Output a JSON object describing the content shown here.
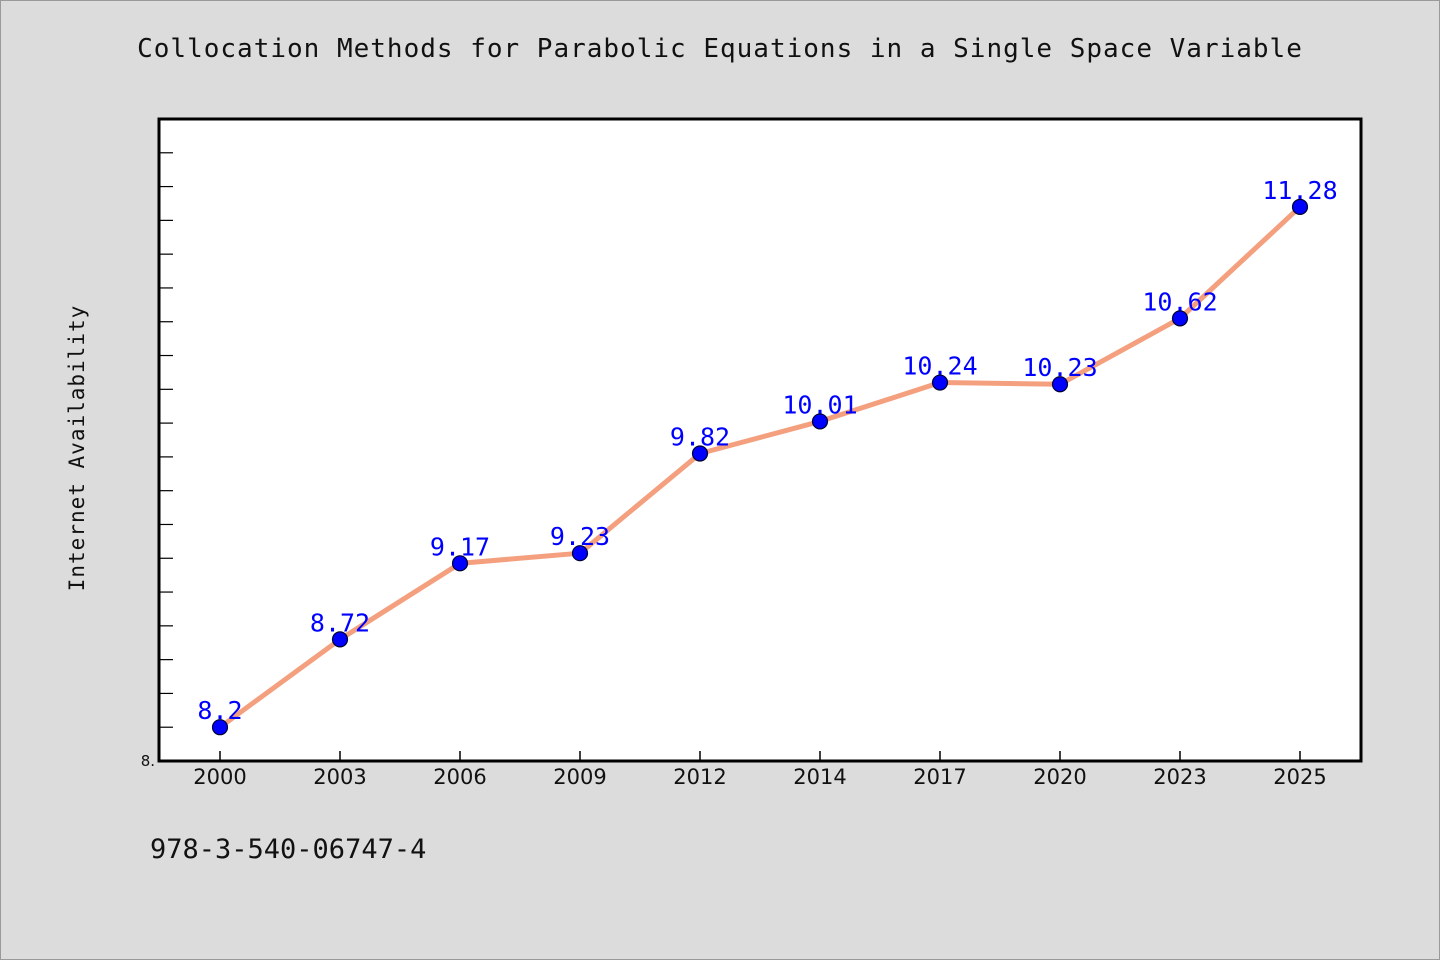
{
  "page": {
    "footer_text": "978-3-540-06747-4"
  },
  "chart_data": {
    "type": "line",
    "title": "Collocation Methods for Parabolic Equations in a Single Space Variable",
    "xlabel": "",
    "ylabel": "Internet Availability",
    "categories": [
      "2000",
      "2003",
      "2006",
      "2009",
      "2012",
      "2014",
      "2017",
      "2020",
      "2023",
      "2025"
    ],
    "series": [
      {
        "values": [
          8.2,
          8.72,
          9.17,
          9.23,
          9.82,
          10.01,
          10.24,
          10.23,
          10.62,
          11.28
        ],
        "data_labels": [
          "8.2",
          "8.72",
          "9.17",
          "9.23",
          "9.82",
          "10.01",
          "10.24",
          "10.23",
          "10.62",
          "11.28"
        ]
      }
    ],
    "ylim": [
      8.0,
      11.8
    ],
    "y_tick_label_visible": "8.",
    "grid": false,
    "legend": "none",
    "colors": {
      "line": "#f4a07f",
      "marker": "#0000ff",
      "label": "#0000ff",
      "background": "#dcdcdc",
      "plot_area": "#ffffff"
    }
  }
}
